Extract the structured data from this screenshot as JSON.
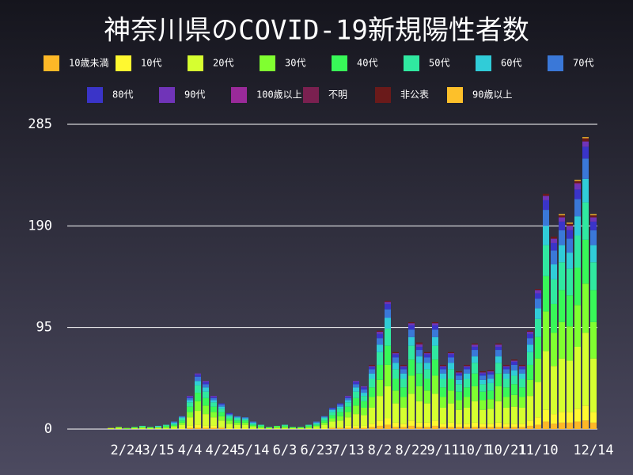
{
  "chart_data": {
    "type": "stacked_bar",
    "title": "神奈川県のCOVID-19新規陽性者数",
    "categories": [
      null,
      null,
      null,
      null,
      null,
      null,
      null,
      "2/24",
      null,
      null,
      null,
      "3/15",
      null,
      null,
      null,
      "4/4",
      null,
      null,
      null,
      "4/24",
      null,
      null,
      null,
      "5/14",
      null,
      null,
      null,
      "6/3",
      null,
      null,
      null,
      "6/23",
      null,
      null,
      null,
      "7/13",
      null,
      null,
      null,
      "8/2",
      null,
      null,
      null,
      "8/22",
      null,
      null,
      null,
      "9/11",
      null,
      null,
      null,
      "10/1",
      null,
      null,
      null,
      "10/21",
      null,
      null,
      null,
      "11/10",
      null,
      null,
      null,
      null,
      null,
      null,
      "12/14"
    ],
    "ylim": [
      0,
      285
    ],
    "yticks": [
      0,
      95,
      190,
      285
    ],
    "grid": true,
    "series": [
      {
        "name": "10歳未満",
        "color": "#fdb827",
        "values": [
          0,
          0,
          0,
          0,
          0,
          0,
          0,
          0,
          0,
          0,
          0,
          0,
          0,
          0,
          0,
          1,
          1,
          1,
          1,
          1,
          0,
          0,
          0,
          0,
          0,
          0,
          0,
          0,
          0,
          0,
          0,
          0,
          0,
          1,
          1,
          1,
          1,
          1,
          2,
          3,
          4,
          2,
          2,
          3,
          2,
          2,
          3,
          2,
          2,
          2,
          2,
          2,
          2,
          2,
          2,
          2,
          2,
          2,
          3,
          4,
          7,
          5,
          6,
          6,
          7,
          8,
          6
        ]
      },
      {
        "name": "10代",
        "color": "#fff830",
        "values": [
          0,
          0,
          0,
          0,
          0,
          0,
          0,
          0,
          0,
          0,
          0,
          0,
          0,
          0,
          1,
          2,
          3,
          2,
          2,
          1,
          1,
          1,
          1,
          0,
          0,
          0,
          0,
          0,
          0,
          0,
          0,
          0,
          1,
          1,
          1,
          2,
          2,
          2,
          3,
          5,
          6,
          4,
          3,
          5,
          4,
          4,
          5,
          3,
          4,
          3,
          3,
          4,
          3,
          3,
          4,
          3,
          3,
          3,
          5,
          7,
          11,
          9,
          10,
          10,
          12,
          14,
          10
        ]
      },
      {
        "name": "20代",
        "color": "#d6ff30",
        "values": [
          0,
          0,
          0,
          0,
          0,
          1,
          1,
          0,
          1,
          1,
          1,
          1,
          1,
          2,
          3,
          8,
          13,
          11,
          8,
          6,
          4,
          3,
          3,
          2,
          1,
          1,
          1,
          1,
          1,
          1,
          1,
          2,
          3,
          5,
          6,
          8,
          11,
          10,
          15,
          23,
          30,
          18,
          15,
          25,
          20,
          18,
          25,
          15,
          18,
          13,
          15,
          20,
          13,
          14,
          20,
          15,
          16,
          15,
          23,
          33,
          55,
          45,
          50,
          48,
          58,
          68,
          50
        ]
      },
      {
        "name": "30代",
        "color": "#80ff30",
        "values": [
          0,
          0,
          0,
          0,
          0,
          0,
          1,
          1,
          0,
          1,
          0,
          1,
          1,
          1,
          2,
          5,
          9,
          8,
          5,
          4,
          3,
          2,
          2,
          1,
          1,
          0,
          1,
          1,
          0,
          0,
          1,
          1,
          2,
          3,
          4,
          5,
          8,
          7,
          10,
          15,
          20,
          12,
          10,
          17,
          14,
          12,
          17,
          10,
          12,
          9,
          10,
          14,
          9,
          9,
          14,
          10,
          11,
          10,
          15,
          22,
          37,
          31,
          34,
          32,
          39,
          46,
          34
        ]
      },
      {
        "name": "40代",
        "color": "#38f858",
        "values": [
          0,
          0,
          0,
          0,
          0,
          0,
          0,
          0,
          1,
          0,
          1,
          0,
          1,
          1,
          2,
          5,
          8,
          7,
          5,
          4,
          2,
          2,
          2,
          1,
          1,
          1,
          1,
          1,
          1,
          1,
          1,
          1,
          2,
          3,
          4,
          5,
          7,
          6,
          9,
          14,
          18,
          11,
          9,
          15,
          12,
          11,
          15,
          9,
          11,
          8,
          9,
          12,
          8,
          8,
          12,
          9,
          10,
          9,
          14,
          20,
          33,
          27,
          30,
          29,
          35,
          41,
          30
        ]
      },
      {
        "name": "50代",
        "color": "#30e8a0",
        "values": [
          0,
          0,
          0,
          0,
          0,
          0,
          0,
          0,
          0,
          1,
          0,
          0,
          1,
          1,
          2,
          4,
          7,
          6,
          4,
          3,
          2,
          2,
          1,
          1,
          1,
          0,
          0,
          1,
          0,
          0,
          1,
          1,
          2,
          3,
          3,
          4,
          6,
          5,
          8,
          12,
          16,
          9,
          8,
          13,
          10,
          9,
          13,
          8,
          9,
          7,
          8,
          10,
          7,
          7,
          10,
          8,
          8,
          8,
          12,
          17,
          29,
          23,
          26,
          25,
          30,
          35,
          26
        ]
      },
      {
        "name": "60代",
        "color": "#30ccd8",
        "values": [
          0,
          0,
          0,
          0,
          0,
          0,
          0,
          0,
          0,
          0,
          0,
          1,
          0,
          1,
          1,
          2,
          4,
          4,
          2,
          2,
          1,
          1,
          1,
          1,
          0,
          0,
          0,
          0,
          0,
          0,
          0,
          1,
          1,
          2,
          2,
          2,
          4,
          3,
          5,
          7,
          10,
          6,
          5,
          8,
          6,
          6,
          8,
          5,
          6,
          4,
          5,
          6,
          4,
          4,
          6,
          5,
          5,
          5,
          7,
          10,
          18,
          14,
          16,
          15,
          18,
          22,
          16
        ]
      },
      {
        "name": "70代",
        "color": "#3a78d8",
        "values": [
          0,
          0,
          0,
          0,
          0,
          0,
          0,
          0,
          0,
          0,
          0,
          0,
          0,
          1,
          1,
          2,
          4,
          3,
          2,
          2,
          1,
          1,
          1,
          1,
          0,
          0,
          0,
          0,
          0,
          0,
          0,
          1,
          1,
          1,
          2,
          2,
          3,
          3,
          4,
          6,
          8,
          5,
          4,
          7,
          6,
          5,
          7,
          4,
          5,
          4,
          4,
          6,
          4,
          4,
          6,
          4,
          5,
          4,
          6,
          9,
          15,
          13,
          14,
          13,
          16,
          19,
          14
        ]
      },
      {
        "name": "80代",
        "color": "#3a34c8",
        "values": [
          0,
          0,
          0,
          0,
          0,
          0,
          0,
          0,
          0,
          0,
          0,
          0,
          0,
          0,
          0,
          1,
          2,
          2,
          1,
          1,
          1,
          0,
          0,
          0,
          0,
          0,
          0,
          0,
          0,
          0,
          0,
          0,
          0,
          1,
          1,
          1,
          2,
          2,
          2,
          4,
          5,
          3,
          2,
          4,
          3,
          3,
          4,
          2,
          3,
          2,
          2,
          3,
          2,
          2,
          3,
          2,
          3,
          2,
          4,
          5,
          9,
          7,
          8,
          8,
          9,
          11,
          8
        ]
      },
      {
        "name": "90代",
        "color": "#7034b8",
        "values": [
          0,
          0,
          0,
          0,
          0,
          0,
          0,
          0,
          0,
          0,
          0,
          0,
          0,
          0,
          0,
          1,
          1,
          1,
          1,
          0,
          0,
          0,
          0,
          0,
          0,
          0,
          0,
          0,
          0,
          0,
          0,
          0,
          0,
          0,
          0,
          1,
          1,
          1,
          1,
          2,
          2,
          1,
          1,
          2,
          2,
          1,
          2,
          1,
          1,
          1,
          1,
          2,
          1,
          1,
          2,
          1,
          1,
          1,
          2,
          3,
          4,
          4,
          4,
          4,
          5,
          5,
          4
        ]
      },
      {
        "name": "100歳以上",
        "color": "#9a2a9a",
        "values": [
          0,
          0,
          0,
          0,
          0,
          0,
          0,
          0,
          0,
          0,
          0,
          0,
          0,
          0,
          0,
          0,
          0,
          0,
          0,
          0,
          0,
          0,
          0,
          0,
          0,
          0,
          0,
          0,
          0,
          0,
          0,
          0,
          0,
          0,
          0,
          0,
          0,
          0,
          0,
          0,
          0,
          0,
          0,
          0,
          0,
          0,
          0,
          0,
          0,
          0,
          0,
          0,
          0,
          0,
          0,
          0,
          0,
          0,
          0,
          0,
          0,
          0,
          0,
          0,
          1,
          0,
          0
        ]
      },
      {
        "name": "不明",
        "color": "#7a2050",
        "values": [
          0,
          0,
          0,
          0,
          0,
          0,
          0,
          0,
          0,
          0,
          0,
          0,
          0,
          0,
          0,
          0,
          0,
          0,
          0,
          0,
          0,
          0,
          0,
          0,
          0,
          0,
          0,
          0,
          0,
          0,
          0,
          0,
          0,
          0,
          0,
          0,
          0,
          0,
          0,
          0,
          0,
          0,
          0,
          0,
          1,
          0,
          0,
          0,
          0,
          0,
          0,
          0,
          0,
          0,
          0,
          0,
          0,
          0,
          0,
          0,
          0,
          0,
          0,
          0,
          0,
          0,
          0
        ]
      },
      {
        "name": "非公表",
        "color": "#6a1a1a",
        "values": [
          0,
          0,
          0,
          0,
          0,
          0,
          0,
          0,
          0,
          0,
          0,
          0,
          0,
          0,
          0,
          0,
          0,
          0,
          0,
          0,
          0,
          0,
          0,
          0,
          0,
          0,
          0,
          0,
          0,
          0,
          0,
          0,
          0,
          0,
          0,
          0,
          0,
          0,
          1,
          1,
          1,
          1,
          1,
          1,
          1,
          1,
          1,
          1,
          1,
          1,
          1,
          1,
          1,
          1,
          1,
          1,
          1,
          1,
          1,
          1,
          2,
          2,
          2,
          2,
          2,
          3,
          2
        ]
      },
      {
        "name": "90歳以上",
        "color": "#fdc02a",
        "values": [
          0,
          0,
          0,
          0,
          0,
          0,
          0,
          0,
          0,
          0,
          0,
          0,
          0,
          0,
          0,
          0,
          0,
          0,
          0,
          0,
          0,
          0,
          0,
          0,
          0,
          0,
          0,
          0,
          0,
          0,
          0,
          0,
          0,
          0,
          0,
          0,
          0,
          0,
          0,
          0,
          0,
          0,
          0,
          0,
          0,
          0,
          0,
          0,
          0,
          0,
          0,
          0,
          0,
          0,
          0,
          0,
          0,
          0,
          0,
          0,
          0,
          0,
          1,
          1,
          1,
          1,
          1
        ]
      }
    ]
  }
}
